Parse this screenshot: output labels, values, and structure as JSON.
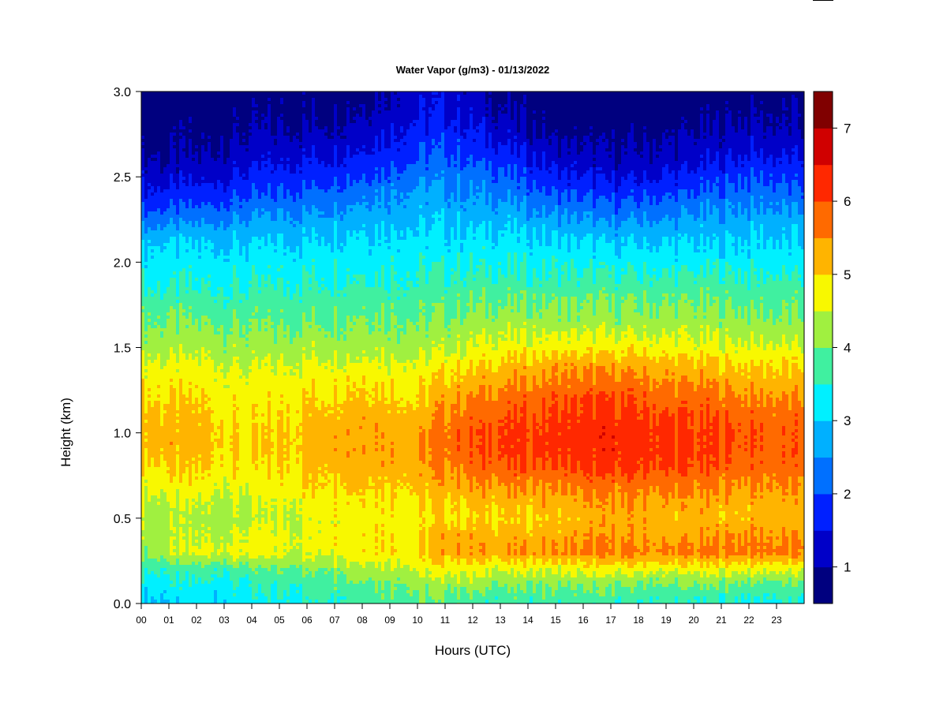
{
  "chart_data": {
    "type": "heatmap",
    "title": "Water Vapor (g/m3) - 01/13/2022",
    "xlabel": "Hours (UTC)",
    "ylabel": "Height (km)",
    "xlim": [
      0,
      24
    ],
    "ylim": [
      0.0,
      3.0
    ],
    "x_ticks": [
      "00",
      "01",
      "02",
      "03",
      "04",
      "05",
      "06",
      "07",
      "08",
      "09",
      "10",
      "11",
      "12",
      "13",
      "14",
      "15",
      "16",
      "17",
      "18",
      "19",
      "20",
      "21",
      "22",
      "23"
    ],
    "y_ticks": [
      "0.0",
      "0.5",
      "1.0",
      "1.5",
      "2.0",
      "2.5",
      "3.0"
    ],
    "colorbar": {
      "range": [
        0.5,
        7.5
      ],
      "ticks": [
        "1",
        "2",
        "3",
        "4",
        "5",
        "6",
        "7"
      ],
      "bins": [
        {
          "min": 0.5,
          "max": 1.0,
          "color": "#00007f"
        },
        {
          "min": 1.0,
          "max": 1.5,
          "color": "#0000c8"
        },
        {
          "min": 1.5,
          "max": 2.0,
          "color": "#0020ff"
        },
        {
          "min": 2.0,
          "max": 2.5,
          "color": "#0070ff"
        },
        {
          "min": 2.5,
          "max": 3.0,
          "color": "#00b0ff"
        },
        {
          "min": 3.0,
          "max": 3.5,
          "color": "#00f0ff"
        },
        {
          "min": 3.5,
          "max": 4.0,
          "color": "#40f0a0"
        },
        {
          "min": 4.0,
          "max": 4.5,
          "color": "#a0f040"
        },
        {
          "min": 4.5,
          "max": 5.0,
          "color": "#f8f800"
        },
        {
          "min": 5.0,
          "max": 5.5,
          "color": "#ffb400"
        },
        {
          "min": 5.5,
          "max": 6.0,
          "color": "#ff6a00"
        },
        {
          "min": 6.0,
          "max": 6.5,
          "color": "#ff2800"
        },
        {
          "min": 6.5,
          "max": 7.0,
          "color": "#d00000"
        },
        {
          "min": 7.0,
          "max": 7.5,
          "color": "#800000"
        }
      ]
    },
    "heights_km": [
      0.0,
      0.1,
      0.2,
      0.3,
      0.4,
      0.5,
      0.6,
      0.7,
      0.8,
      0.9,
      1.0,
      1.1,
      1.2,
      1.3,
      1.4,
      1.5,
      1.6,
      1.7,
      1.8,
      1.9,
      2.0,
      2.1,
      2.2,
      2.3,
      2.4,
      2.5,
      2.6,
      2.7,
      2.8,
      2.9,
      3.0
    ],
    "hourly_profiles": [
      {
        "hour": 0,
        "values": [
          3.0,
          3.2,
          3.6,
          4.1,
          4.3,
          4.3,
          4.4,
          4.7,
          5.0,
          5.2,
          5.2,
          5.2,
          5.0,
          4.8,
          4.6,
          4.3,
          4.1,
          3.9,
          3.6,
          3.4,
          3.2,
          3.0,
          2.5,
          2.0,
          1.6,
          1.3,
          1.0,
          0.8,
          0.7,
          0.6,
          0.5
        ]
      },
      {
        "hour": 2,
        "values": [
          3.0,
          3.3,
          3.7,
          4.6,
          4.4,
          4.3,
          4.5,
          4.8,
          5.0,
          5.2,
          5.2,
          5.1,
          5.0,
          4.8,
          4.6,
          4.3,
          4.1,
          3.9,
          3.6,
          3.4,
          3.2,
          3.0,
          2.6,
          2.1,
          1.7,
          1.3,
          1.0,
          0.9,
          0.8,
          0.7,
          0.6
        ]
      },
      {
        "hour": 4,
        "values": [
          3.2,
          3.4,
          3.8,
          4.7,
          4.6,
          4.3,
          4.4,
          4.6,
          4.8,
          4.9,
          4.9,
          4.8,
          4.7,
          4.6,
          4.4,
          4.2,
          4.0,
          3.8,
          3.6,
          3.4,
          3.2,
          3.0,
          2.7,
          2.3,
          1.9,
          1.6,
          1.3,
          1.1,
          0.9,
          0.8,
          0.7
        ]
      },
      {
        "hour": 6,
        "values": [
          3.5,
          3.7,
          4.0,
          4.6,
          4.6,
          4.6,
          4.8,
          5.0,
          5.1,
          5.2,
          5.2,
          5.1,
          5.0,
          4.8,
          4.6,
          4.3,
          4.1,
          3.9,
          3.7,
          3.5,
          3.3,
          3.1,
          2.8,
          2.5,
          2.1,
          1.8,
          1.5,
          1.2,
          1.0,
          0.9,
          0.8
        ]
      },
      {
        "hour": 8,
        "values": [
          3.7,
          4.0,
          4.4,
          5.0,
          5.0,
          4.9,
          5.0,
          5.2,
          5.4,
          5.5,
          5.5,
          5.4,
          5.2,
          5.0,
          4.7,
          4.4,
          4.2,
          4.0,
          3.8,
          3.6,
          3.4,
          3.2,
          3.0,
          2.7,
          2.4,
          2.0,
          1.7,
          1.4,
          1.2,
          1.0,
          0.9
        ]
      },
      {
        "hour": 10,
        "values": [
          3.9,
          4.1,
          4.5,
          4.9,
          4.9,
          4.8,
          4.9,
          5.1,
          5.3,
          5.4,
          5.3,
          5.2,
          5.0,
          4.8,
          4.6,
          4.3,
          4.1,
          3.9,
          3.7,
          3.5,
          3.4,
          3.2,
          3.0,
          2.8,
          2.6,
          2.3,
          2.0,
          1.8,
          1.6,
          1.4,
          1.2
        ]
      },
      {
        "hour": 11,
        "values": [
          3.8,
          4.2,
          4.8,
          5.4,
          5.3,
          5.0,
          5.1,
          5.4,
          5.6,
          5.7,
          5.7,
          5.6,
          5.4,
          5.1,
          4.8,
          4.4,
          4.2,
          4.0,
          3.8,
          3.6,
          3.4,
          3.2,
          3.0,
          2.8,
          2.6,
          2.4,
          2.1,
          1.9,
          1.7,
          1.5,
          1.4
        ]
      },
      {
        "hour": 13,
        "values": [
          3.6,
          4.0,
          4.6,
          5.4,
          5.2,
          5.0,
          5.2,
          5.5,
          5.9,
          6.1,
          6.1,
          5.9,
          5.7,
          5.4,
          5.1,
          4.7,
          4.4,
          4.1,
          3.9,
          3.6,
          3.4,
          3.2,
          3.0,
          2.7,
          2.4,
          2.1,
          1.8,
          1.5,
          1.2,
          1.0,
          0.8
        ]
      },
      {
        "hour": 15,
        "values": [
          3.6,
          4.0,
          4.6,
          5.5,
          5.3,
          5.1,
          5.3,
          5.6,
          6.0,
          6.2,
          6.2,
          6.1,
          5.9,
          5.6,
          5.3,
          4.8,
          4.4,
          4.1,
          3.9,
          3.6,
          3.4,
          3.1,
          2.8,
          2.4,
          2.0,
          1.6,
          1.3,
          1.0,
          0.8,
          0.7,
          0.6
        ]
      },
      {
        "hour": 17,
        "values": [
          3.6,
          4.0,
          4.7,
          5.6,
          5.4,
          5.3,
          5.4,
          5.8,
          6.1,
          6.3,
          6.3,
          6.2,
          6.0,
          5.7,
          5.3,
          4.8,
          4.4,
          4.1,
          3.9,
          3.6,
          3.3,
          3.0,
          2.6,
          2.2,
          1.8,
          1.4,
          1.1,
          0.9,
          0.7,
          0.6,
          0.5
        ]
      },
      {
        "hour": 19,
        "values": [
          3.5,
          3.9,
          4.6,
          5.6,
          5.3,
          5.2,
          5.4,
          5.7,
          6.0,
          6.2,
          6.1,
          6.0,
          5.8,
          5.5,
          5.2,
          4.7,
          4.4,
          4.1,
          3.9,
          3.6,
          3.3,
          3.0,
          2.7,
          2.3,
          1.9,
          1.5,
          1.2,
          1.0,
          0.8,
          0.6,
          0.5
        ]
      },
      {
        "hour": 21,
        "values": [
          3.5,
          3.9,
          4.7,
          5.7,
          5.4,
          5.2,
          5.3,
          5.6,
          5.9,
          6.0,
          6.0,
          5.9,
          5.7,
          5.4,
          5.1,
          4.6,
          4.3,
          4.1,
          3.9,
          3.6,
          3.3,
          3.0,
          2.8,
          2.5,
          2.1,
          1.8,
          1.4,
          1.2,
          1.0,
          0.8,
          0.7
        ]
      },
      {
        "hour": 22,
        "values": [
          3.4,
          3.8,
          4.6,
          5.7,
          5.5,
          5.2,
          5.3,
          5.5,
          5.8,
          5.9,
          5.9,
          5.8,
          5.6,
          5.3,
          5.0,
          4.6,
          4.3,
          4.0,
          3.8,
          3.6,
          3.3,
          3.1,
          2.9,
          2.6,
          2.3,
          2.0,
          1.6,
          1.3,
          1.1,
          0.9,
          0.8
        ]
      },
      {
        "hour": 24,
        "values": [
          3.4,
          3.8,
          4.6,
          5.6,
          5.4,
          5.2,
          5.3,
          5.5,
          5.7,
          5.8,
          5.8,
          5.7,
          5.5,
          5.2,
          4.9,
          4.5,
          4.2,
          4.0,
          3.8,
          3.5,
          3.3,
          3.0,
          2.8,
          2.5,
          2.1,
          1.8,
          1.5,
          1.2,
          1.0,
          0.9,
          0.8
        ]
      }
    ]
  }
}
